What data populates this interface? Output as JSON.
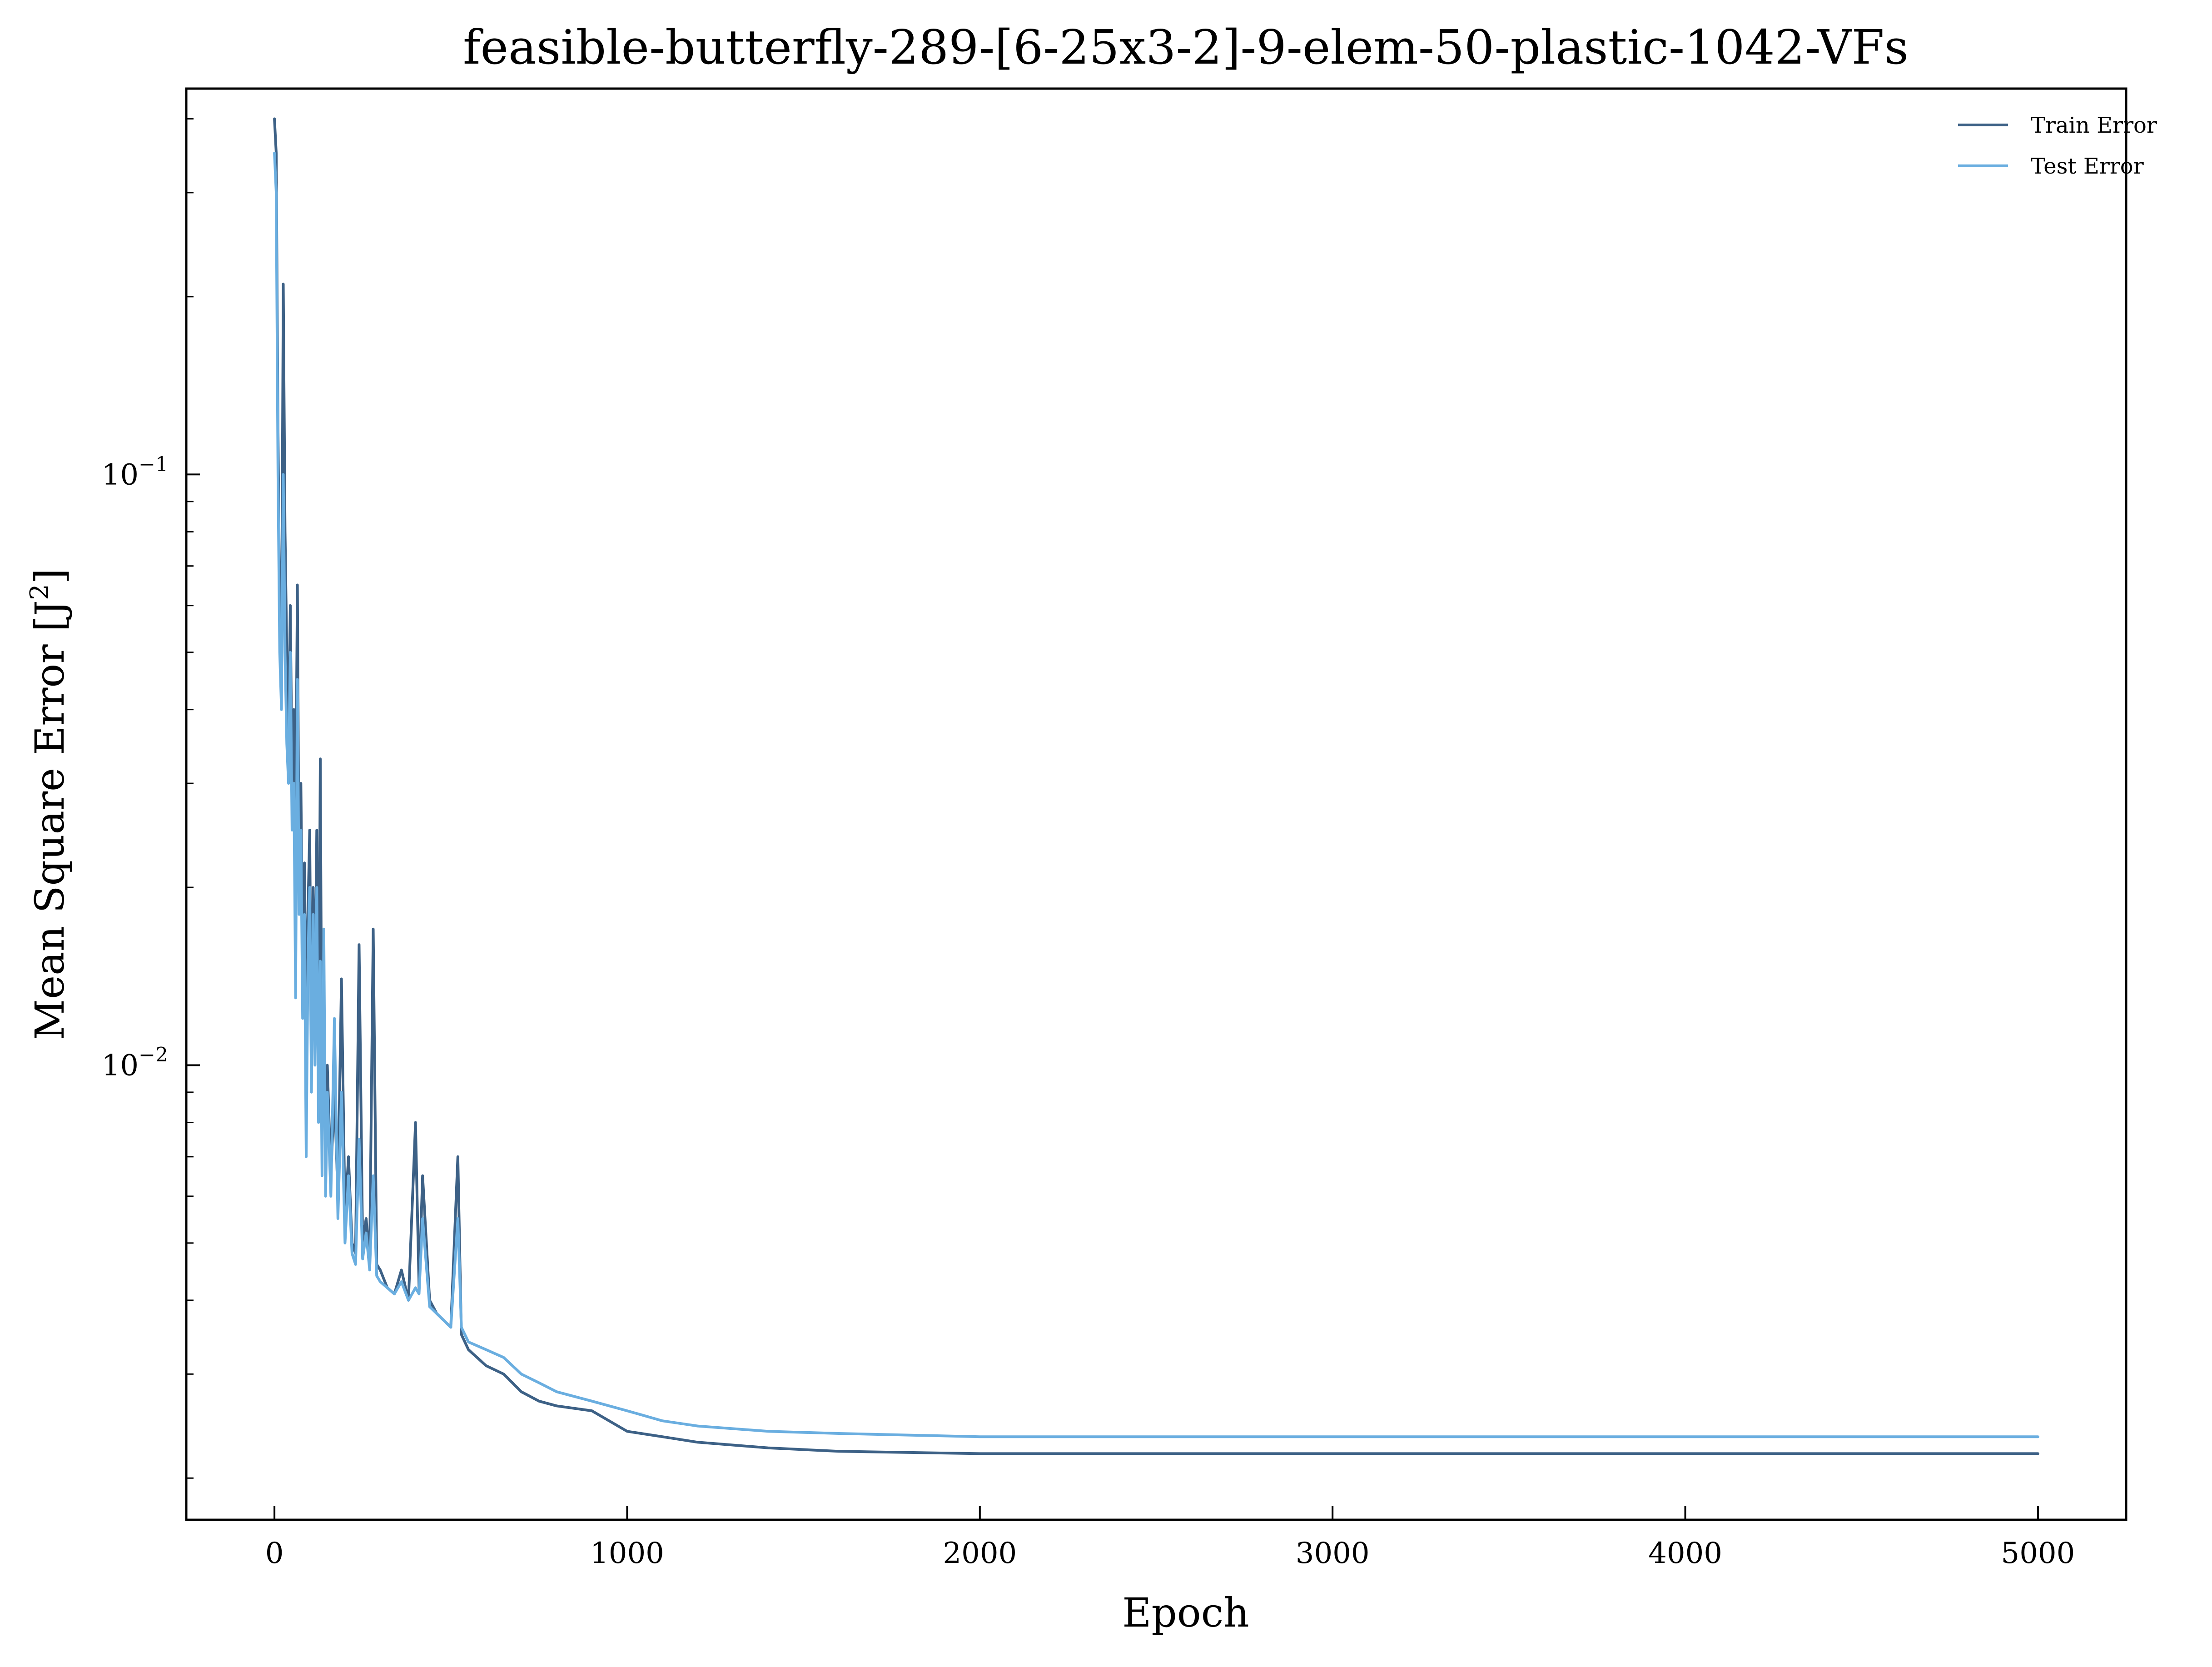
{
  "chart_data": {
    "type": "line",
    "title": "feasible-butterfly-289-[6-25x3-2]-9-elem-50-plastic-1042-VFs",
    "xlabel": "Epoch",
    "ylabel": "Mean Square Error [J",
    "ylabel_sup": "2",
    "ylabel_close": "]",
    "xlim": [
      -250,
      5250
    ],
    "ylim": [
      0.0017,
      0.45
    ],
    "yscale": "log",
    "grid": false,
    "legend_position": "top-right",
    "x_ticks": [
      {
        "value": 0,
        "label": "0"
      },
      {
        "value": 1000,
        "label": "1000"
      },
      {
        "value": 2000,
        "label": "2000"
      },
      {
        "value": 3000,
        "label": "3000"
      },
      {
        "value": 4000,
        "label": "4000"
      },
      {
        "value": 5000,
        "label": "5000"
      }
    ],
    "y_ticks": [
      {
        "value": 0.1,
        "base": "10",
        "exp": "−1"
      },
      {
        "value": 0.01,
        "base": "10",
        "exp": "−2"
      }
    ],
    "series": [
      {
        "name": "Train Error",
        "color": "#3d6186",
        "points": [
          [
            0,
            0.4
          ],
          [
            5,
            0.35
          ],
          [
            10,
            0.12
          ],
          [
            15,
            0.06
          ],
          [
            20,
            0.045
          ],
          [
            25,
            0.21
          ],
          [
            30,
            0.08
          ],
          [
            35,
            0.05
          ],
          [
            40,
            0.035
          ],
          [
            45,
            0.06
          ],
          [
            50,
            0.03
          ],
          [
            55,
            0.04
          ],
          [
            60,
            0.025
          ],
          [
            65,
            0.065
          ],
          [
            70,
            0.02
          ],
          [
            75,
            0.03
          ],
          [
            80,
            0.015
          ],
          [
            85,
            0.022
          ],
          [
            90,
            0.012
          ],
          [
            95,
            0.018
          ],
          [
            100,
            0.025
          ],
          [
            105,
            0.01
          ],
          [
            110,
            0.02
          ],
          [
            115,
            0.012
          ],
          [
            120,
            0.025
          ],
          [
            125,
            0.009
          ],
          [
            130,
            0.033
          ],
          [
            135,
            0.008
          ],
          [
            140,
            0.012
          ],
          [
            145,
            0.007
          ],
          [
            150,
            0.01
          ],
          [
            160,
            0.0065
          ],
          [
            170,
            0.009
          ],
          [
            180,
            0.006
          ],
          [
            190,
            0.014
          ],
          [
            200,
            0.0055
          ],
          [
            210,
            0.007
          ],
          [
            220,
            0.005
          ],
          [
            230,
            0.0048
          ],
          [
            240,
            0.016
          ],
          [
            250,
            0.005
          ],
          [
            260,
            0.0055
          ],
          [
            270,
            0.0047
          ],
          [
            280,
            0.017
          ],
          [
            290,
            0.0046
          ],
          [
            300,
            0.0045
          ],
          [
            320,
            0.0042
          ],
          [
            340,
            0.0041
          ],
          [
            360,
            0.0045
          ],
          [
            380,
            0.004
          ],
          [
            400,
            0.008
          ],
          [
            410,
            0.0042
          ],
          [
            420,
            0.0065
          ],
          [
            440,
            0.004
          ],
          [
            460,
            0.0038
          ],
          [
            480,
            0.0037
          ],
          [
            500,
            0.0036
          ],
          [
            520,
            0.007
          ],
          [
            530,
            0.0035
          ],
          [
            550,
            0.0033
          ],
          [
            600,
            0.0031
          ],
          [
            650,
            0.003
          ],
          [
            700,
            0.0028
          ],
          [
            750,
            0.0027
          ],
          [
            800,
            0.00265
          ],
          [
            900,
            0.0026
          ],
          [
            1000,
            0.0024
          ],
          [
            1100,
            0.00235
          ],
          [
            1200,
            0.0023
          ],
          [
            1400,
            0.00225
          ],
          [
            1600,
            0.00222
          ],
          [
            2000,
            0.0022
          ],
          [
            3000,
            0.0022
          ],
          [
            4000,
            0.0022
          ],
          [
            5000,
            0.0022
          ]
        ]
      },
      {
        "name": "Test Error",
        "color": "#6aaee0",
        "points": [
          [
            0,
            0.35
          ],
          [
            5,
            0.3
          ],
          [
            10,
            0.1
          ],
          [
            15,
            0.05
          ],
          [
            20,
            0.04
          ],
          [
            25,
            0.1
          ],
          [
            30,
            0.05
          ],
          [
            35,
            0.035
          ],
          [
            40,
            0.03
          ],
          [
            45,
            0.05
          ],
          [
            50,
            0.025
          ],
          [
            55,
            0.03
          ],
          [
            60,
            0.013
          ],
          [
            65,
            0.045
          ],
          [
            70,
            0.018
          ],
          [
            75,
            0.025
          ],
          [
            80,
            0.012
          ],
          [
            85,
            0.018
          ],
          [
            90,
            0.007
          ],
          [
            95,
            0.015
          ],
          [
            100,
            0.02
          ],
          [
            105,
            0.009
          ],
          [
            110,
            0.018
          ],
          [
            115,
            0.01
          ],
          [
            120,
            0.02
          ],
          [
            125,
            0.008
          ],
          [
            130,
            0.015
          ],
          [
            135,
            0.0065
          ],
          [
            140,
            0.017
          ],
          [
            145,
            0.006
          ],
          [
            150,
            0.009
          ],
          [
            160,
            0.006
          ],
          [
            170,
            0.012
          ],
          [
            180,
            0.0055
          ],
          [
            190,
            0.009
          ],
          [
            200,
            0.005
          ],
          [
            210,
            0.0065
          ],
          [
            220,
            0.0048
          ],
          [
            230,
            0.0046
          ],
          [
            240,
            0.0075
          ],
          [
            250,
            0.0047
          ],
          [
            260,
            0.0052
          ],
          [
            270,
            0.0045
          ],
          [
            280,
            0.0065
          ],
          [
            290,
            0.0044
          ],
          [
            300,
            0.0043
          ],
          [
            320,
            0.0042
          ],
          [
            340,
            0.0041
          ],
          [
            360,
            0.0043
          ],
          [
            380,
            0.004
          ],
          [
            400,
            0.0042
          ],
          [
            410,
            0.0041
          ],
          [
            420,
            0.0055
          ],
          [
            440,
            0.0039
          ],
          [
            460,
            0.0038
          ],
          [
            480,
            0.0037
          ],
          [
            500,
            0.0036
          ],
          [
            520,
            0.0055
          ],
          [
            530,
            0.0036
          ],
          [
            550,
            0.0034
          ],
          [
            600,
            0.0033
          ],
          [
            650,
            0.0032
          ],
          [
            700,
            0.003
          ],
          [
            750,
            0.0029
          ],
          [
            800,
            0.0028
          ],
          [
            900,
            0.0027
          ],
          [
            1000,
            0.0026
          ],
          [
            1100,
            0.0025
          ],
          [
            1200,
            0.00245
          ],
          [
            1400,
            0.0024
          ],
          [
            1600,
            0.00238
          ],
          [
            2000,
            0.00235
          ],
          [
            3000,
            0.00235
          ],
          [
            4000,
            0.00235
          ],
          [
            5000,
            0.00235
          ]
        ]
      }
    ]
  }
}
